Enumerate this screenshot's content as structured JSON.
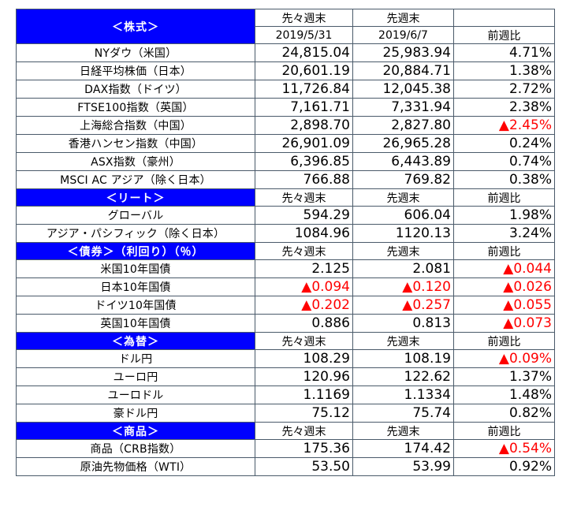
{
  "header": {
    "section": "＜株式＞",
    "col1_top": "先々週末",
    "col2_top": "先週末",
    "col1_date": "2019/5/31",
    "col2_date": "2019/6/7",
    "col3": "前週比"
  },
  "sections": [
    {
      "title": null,
      "rows": [
        {
          "label": "NYダウ（米国）",
          "v1": "24,815.04",
          "v2": "25,983.94",
          "chg": "4.71%",
          "neg1": false,
          "neg2": false,
          "negc": false
        },
        {
          "label": "日経平均株価（日本）",
          "v1": "20,601.19",
          "v2": "20,884.71",
          "chg": "1.38%",
          "neg1": false,
          "neg2": false,
          "negc": false
        },
        {
          "label": "DAX指数（ドイツ）",
          "v1": "11,726.84",
          "v2": "12,045.38",
          "chg": "2.72%",
          "neg1": false,
          "neg2": false,
          "negc": false
        },
        {
          "label": "FTSE100指数（英国）",
          "v1": "7,161.71",
          "v2": "7,331.94",
          "chg": "2.38%",
          "neg1": false,
          "neg2": false,
          "negc": false
        },
        {
          "label": "上海総合指数（中国）",
          "v1": "2,898.70",
          "v2": "2,827.80",
          "chg": "▲2.45%",
          "neg1": false,
          "neg2": false,
          "negc": true
        },
        {
          "label": "香港ハンセン指数（中国）",
          "v1": "26,901.09",
          "v2": "26,965.28",
          "chg": "0.24%",
          "neg1": false,
          "neg2": false,
          "negc": false
        },
        {
          "label": "ASX指数（豪州）",
          "v1": "6,396.85",
          "v2": "6,443.89",
          "chg": "0.74%",
          "neg1": false,
          "neg2": false,
          "negc": false
        },
        {
          "label": "MSCI AC アジア（除く日本）",
          "v1": "766.88",
          "v2": "769.82",
          "chg": "0.38%",
          "neg1": false,
          "neg2": false,
          "negc": false
        }
      ]
    },
    {
      "title": "＜リート＞",
      "col1": "先々週末",
      "col2": "先週末",
      "col3": "前週比",
      "rows": [
        {
          "label": "グローバル",
          "v1": "594.29",
          "v2": "606.04",
          "chg": "1.98%",
          "neg1": false,
          "neg2": false,
          "negc": false
        },
        {
          "label": "アジア・パシフィック（除く日本）",
          "v1": "1084.96",
          "v2": "1120.13",
          "chg": "3.24%",
          "neg1": false,
          "neg2": false,
          "negc": false
        }
      ]
    },
    {
      "title": "＜債券＞（利回り）（％）",
      "col1": "先々週末",
      "col2": "先週末",
      "col3": "前週比",
      "rows": [
        {
          "label": "米国10年国債",
          "v1": "2.125",
          "v2": "2.081",
          "chg": "▲0.044",
          "neg1": false,
          "neg2": false,
          "negc": true
        },
        {
          "label": "日本10年国債",
          "v1": "▲0.094",
          "v2": "▲0.120",
          "chg": "▲0.026",
          "neg1": true,
          "neg2": true,
          "negc": true
        },
        {
          "label": "ドイツ10年国債",
          "v1": "▲0.202",
          "v2": "▲0.257",
          "chg": "▲0.055",
          "neg1": true,
          "neg2": true,
          "negc": true
        },
        {
          "label": "英国10年国債",
          "v1": "0.886",
          "v2": "0.813",
          "chg": "▲0.073",
          "neg1": false,
          "neg2": false,
          "negc": true
        }
      ]
    },
    {
      "title": "＜為替＞",
      "col1": "先々週末",
      "col2": "先週末",
      "col3": "前週比",
      "rows": [
        {
          "label": "ドル円",
          "v1": "108.29",
          "v2": "108.19",
          "chg": "▲0.09%",
          "neg1": false,
          "neg2": false,
          "negc": true
        },
        {
          "label": "ユーロ円",
          "v1": "120.96",
          "v2": "122.62",
          "chg": "1.37%",
          "neg1": false,
          "neg2": false,
          "negc": false
        },
        {
          "label": "ユーロドル",
          "v1": "1.1169",
          "v2": "1.1334",
          "chg": "1.48%",
          "neg1": false,
          "neg2": false,
          "negc": false
        },
        {
          "label": "豪ドル円",
          "v1": "75.12",
          "v2": "75.74",
          "chg": "0.82%",
          "neg1": false,
          "neg2": false,
          "negc": false
        }
      ]
    },
    {
      "title": "＜商品＞",
      "col1": "先々週末",
      "col2": "先週末",
      "col3": "前週比",
      "rows": [
        {
          "label": "商品（CRB指数）",
          "v1": "175.36",
          "v2": "174.42",
          "chg": "▲0.54%",
          "neg1": false,
          "neg2": false,
          "negc": true
        },
        {
          "label": "原油先物価格（WTI）",
          "v1": "53.50",
          "v2": "53.99",
          "chg": "0.92%",
          "neg1": false,
          "neg2": false,
          "negc": false
        }
      ]
    }
  ],
  "colors": {
    "header_bg": "#0000ff",
    "header_text": "#ffffff",
    "negative": "#ff0000",
    "border": "#4a5a6a"
  }
}
